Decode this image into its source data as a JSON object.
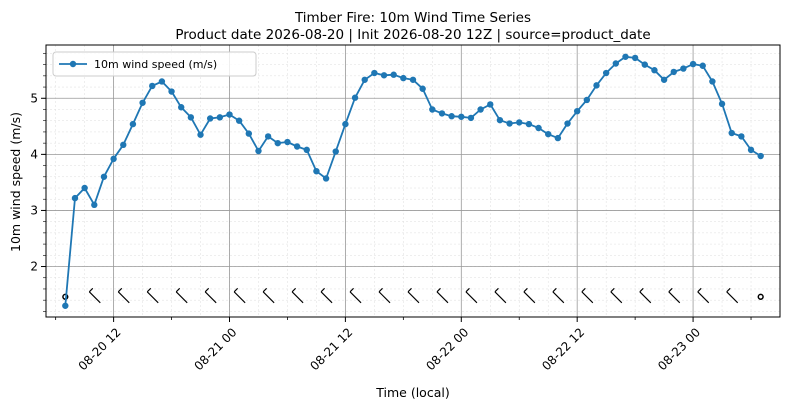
{
  "chart_data": {
    "type": "line",
    "title": "Timber Fire: 10m Wind Time Series",
    "subtitle": "Product date 2026-08-20 | Init 2026-08-20 12Z | source=product_date",
    "xlabel": "Time (local)",
    "ylabel": "10m wind speed (m/s)",
    "x_tick_labels": [
      "08-20 12",
      "08-21 00",
      "08-21 12",
      "08-22 00",
      "08-22 12",
      "08-23 00"
    ],
    "y_tick_labels": [
      "2",
      "3",
      "4",
      "5"
    ],
    "ylim": [
      1.1,
      5.95
    ],
    "xlim": [
      "2026-08-20 05:00",
      "2026-08-23 09:00"
    ],
    "grid": true,
    "legend_position": "top-left",
    "series": [
      {
        "name": "10m wind speed (m/s)",
        "color": "#1f77b4",
        "marker": "circle",
        "x": [
          "2026-08-20 07:00",
          "2026-08-20 08:00",
          "2026-08-20 09:00",
          "2026-08-20 10:00",
          "2026-08-20 11:00",
          "2026-08-20 12:00",
          "2026-08-20 13:00",
          "2026-08-20 14:00",
          "2026-08-20 15:00",
          "2026-08-20 16:00",
          "2026-08-20 17:00",
          "2026-08-20 18:00",
          "2026-08-20 19:00",
          "2026-08-20 20:00",
          "2026-08-20 21:00",
          "2026-08-20 22:00",
          "2026-08-20 23:00",
          "2026-08-21 00:00",
          "2026-08-21 01:00",
          "2026-08-21 02:00",
          "2026-08-21 03:00",
          "2026-08-21 04:00",
          "2026-08-21 05:00",
          "2026-08-21 06:00",
          "2026-08-21 07:00",
          "2026-08-21 08:00",
          "2026-08-21 09:00",
          "2026-08-21 10:00",
          "2026-08-21 11:00",
          "2026-08-21 12:00",
          "2026-08-21 13:00",
          "2026-08-21 14:00",
          "2026-08-21 15:00",
          "2026-08-21 16:00",
          "2026-08-21 17:00",
          "2026-08-21 18:00",
          "2026-08-21 19:00",
          "2026-08-21 20:00",
          "2026-08-21 21:00",
          "2026-08-21 22:00",
          "2026-08-21 23:00",
          "2026-08-22 00:00",
          "2026-08-22 01:00",
          "2026-08-22 02:00",
          "2026-08-22 03:00",
          "2026-08-22 04:00",
          "2026-08-22 05:00",
          "2026-08-22 06:00",
          "2026-08-22 07:00",
          "2026-08-22 08:00",
          "2026-08-22 09:00",
          "2026-08-22 10:00",
          "2026-08-22 11:00",
          "2026-08-22 12:00",
          "2026-08-22 13:00",
          "2026-08-22 14:00",
          "2026-08-22 15:00",
          "2026-08-22 16:00",
          "2026-08-22 17:00",
          "2026-08-22 18:00",
          "2026-08-22 19:00",
          "2026-08-22 20:00",
          "2026-08-22 21:00",
          "2026-08-22 22:00",
          "2026-08-22 23:00",
          "2026-08-23 00:00",
          "2026-08-23 01:00",
          "2026-08-23 02:00",
          "2026-08-23 03:00",
          "2026-08-23 04:00",
          "2026-08-23 05:00",
          "2026-08-23 06:00",
          "2026-08-23 07:00"
        ],
        "values": [
          1.3,
          3.22,
          3.4,
          3.1,
          3.6,
          3.92,
          4.17,
          4.54,
          4.92,
          5.22,
          5.3,
          5.12,
          4.84,
          4.66,
          4.35,
          4.64,
          4.66,
          4.71,
          4.6,
          4.37,
          4.06,
          4.32,
          4.2,
          4.22,
          4.14,
          4.08,
          3.7,
          3.57,
          4.05,
          4.54,
          5.01,
          5.33,
          5.45,
          5.41,
          5.42,
          5.36,
          5.33,
          5.17,
          4.8,
          4.73,
          4.68,
          4.67,
          4.65,
          4.8,
          4.89,
          4.61,
          4.55,
          4.57,
          4.54,
          4.47,
          4.36,
          4.29,
          4.55,
          4.77,
          4.97,
          5.23,
          5.45,
          5.62,
          5.74,
          5.72,
          5.6,
          5.5,
          5.33,
          5.47,
          5.53,
          5.61,
          5.58,
          5.3,
          4.9,
          4.38,
          4.32,
          4.08,
          3.97
        ]
      }
    ],
    "wind_barbs": {
      "row_level": 1.46,
      "x": [
        "2026-08-20 07:00",
        "2026-08-20 10:00",
        "2026-08-20 13:00",
        "2026-08-20 16:00",
        "2026-08-20 19:00",
        "2026-08-20 22:00",
        "2026-08-21 01:00",
        "2026-08-21 04:00",
        "2026-08-21 07:00",
        "2026-08-21 10:00",
        "2026-08-21 13:00",
        "2026-08-21 16:00",
        "2026-08-21 19:00",
        "2026-08-21 22:00",
        "2026-08-22 01:00",
        "2026-08-22 04:00",
        "2026-08-22 07:00",
        "2026-08-22 10:00",
        "2026-08-22 13:00",
        "2026-08-22 16:00",
        "2026-08-22 19:00",
        "2026-08-22 22:00",
        "2026-08-23 01:00",
        "2026-08-23 04:00",
        "2026-08-23 07:00"
      ],
      "calm": [
        true,
        false,
        false,
        false,
        false,
        false,
        false,
        false,
        false,
        false,
        false,
        false,
        false,
        false,
        false,
        false,
        false,
        false,
        false,
        false,
        false,
        false,
        false,
        false,
        true
      ]
    }
  }
}
